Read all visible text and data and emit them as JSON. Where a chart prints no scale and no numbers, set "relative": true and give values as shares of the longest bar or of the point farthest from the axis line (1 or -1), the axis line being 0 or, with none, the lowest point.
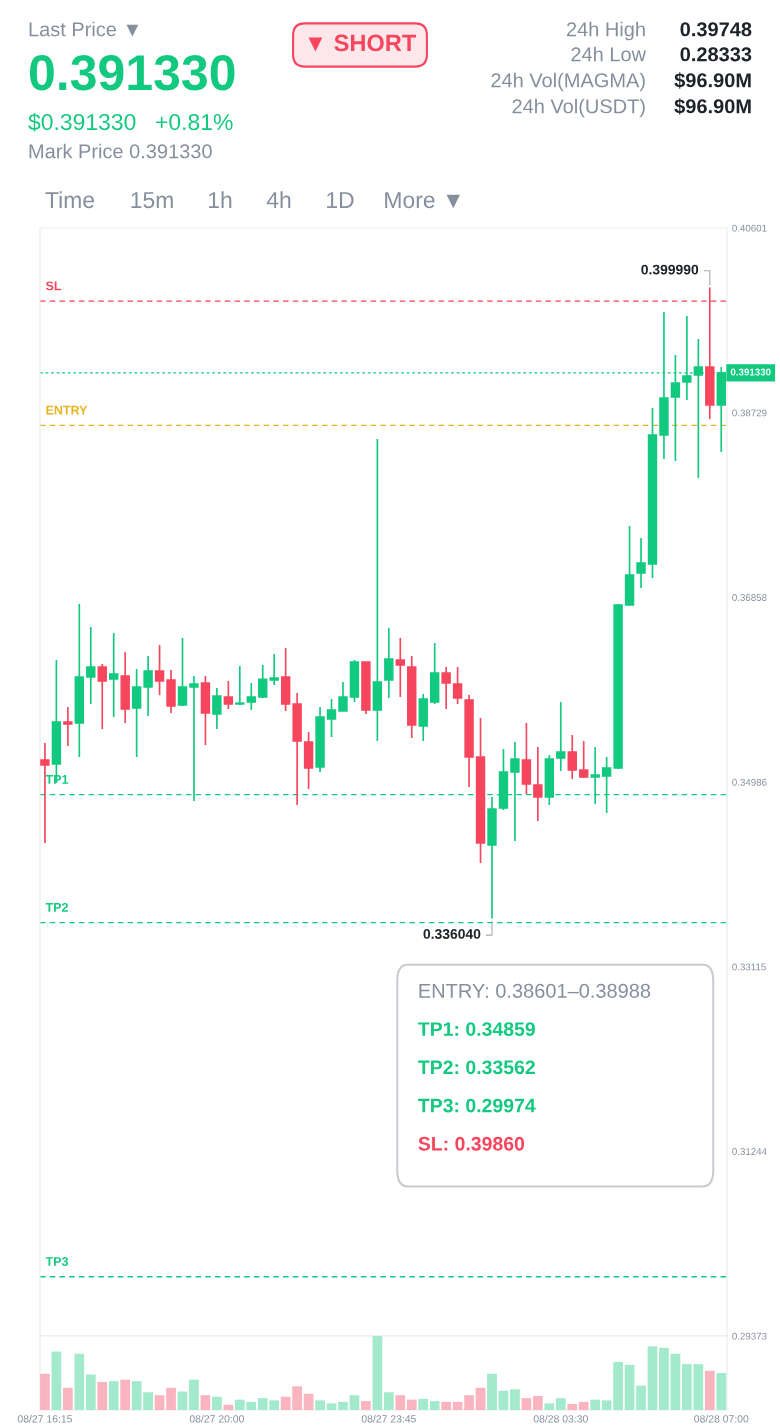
{
  "chart_data": [
    {
      "type": "other",
      "annotations": [
        "Last Price ▼",
        "0.391330",
        "$0.391330",
        "+0.81%",
        "Mark Price 0.391330",
        "▼ SHORT",
        "24h High",
        "0.39748",
        "24h Low",
        "0.28333",
        "24h Vol(MAGMA)",
        "$96.90M",
        "24h Vol(USDT)",
        "$96.90M",
        "Time",
        "15m",
        "1h",
        "4h",
        "1D",
        "More ▼"
      ]
    },
    {
      "type": "candlestick",
      "categories": [
        null,
        null,
        null,
        null,
        null,
        null,
        null,
        null,
        null,
        null,
        null,
        null,
        null,
        null,
        null,
        null,
        null,
        null,
        null,
        null,
        null,
        null,
        null,
        null,
        null,
        null,
        null,
        null,
        null,
        null,
        null,
        null,
        null,
        null,
        null,
        null,
        null,
        null,
        null,
        null,
        null,
        null,
        null,
        null,
        null,
        null,
        null,
        null,
        null,
        null,
        null,
        null,
        null,
        null,
        null,
        null,
        null,
        null,
        null,
        null
      ],
      "ohlc": [
        [
          0.3521,
          0.35382,
          0.34369,
          0.35159
        ],
        [
          0.35169,
          0.36223,
          0.34977,
          0.35595
        ],
        [
          0.35595,
          0.35747,
          0.35352,
          0.35575
        ],
        [
          0.35585,
          0.36791,
          0.3524,
          0.36051
        ],
        [
          0.36051,
          0.36558,
          0.35777,
          0.36152
        ],
        [
          0.36152,
          0.36183,
          0.35524,
          0.3601
        ],
        [
          0.3603,
          0.36497,
          0.35645,
          0.36081
        ],
        [
          0.36061,
          0.36304,
          0.35585,
          0.35727
        ],
        [
          0.35737,
          0.36132,
          0.3524,
          0.35949
        ],
        [
          0.35949,
          0.36264,
          0.35656,
          0.36112
        ],
        [
          0.36112,
          0.36375,
          0.35868,
          0.3601
        ],
        [
          0.3602,
          0.36122,
          0.35686,
          0.35757
        ],
        [
          0.35767,
          0.36446,
          0.35757,
          0.35949
        ],
        [
          0.35949,
          0.36061,
          0.34794,
          0.3598
        ],
        [
          0.3599,
          0.36061,
          0.35362,
          0.35686
        ],
        [
          0.35676,
          0.35939,
          0.35524,
          0.35858
        ],
        [
          0.35848,
          0.3601,
          0.35727,
          0.35777
        ],
        [
          0.35777,
          0.36162,
          0.35767,
          0.35787
        ],
        [
          0.35797,
          0.3599,
          0.35716,
          0.35848
        ],
        [
          0.35848,
          0.36172,
          0.35838,
          0.3603
        ],
        [
          0.3602,
          0.36284,
          0.3597,
          0.36041
        ],
        [
          0.36051,
          0.36345,
          0.35706,
          0.35777
        ],
        [
          0.35777,
          0.35889,
          0.34754,
          0.35402
        ],
        [
          0.35392,
          0.35493,
          0.34916,
          0.35129
        ],
        [
          0.35139,
          0.35747,
          0.35088,
          0.35645
        ],
        [
          0.35625,
          0.35828,
          0.35443,
          0.35716
        ],
        [
          0.35706,
          0.36,
          0.35706,
          0.35848
        ],
        [
          0.35848,
          0.36223,
          0.35797,
          0.36203
        ],
        [
          0.36203,
          0.36203,
          0.35676,
          0.35716
        ],
        [
          0.35716,
          0.38463,
          0.35402,
          0.36
        ],
        [
          0.3602,
          0.36547,
          0.35838,
          0.36233
        ],
        [
          0.36223,
          0.36446,
          0.35848,
          0.36172
        ],
        [
          0.36152,
          0.36264,
          0.35433,
          0.35564
        ],
        [
          0.35554,
          0.35879,
          0.35402,
          0.35828
        ],
        [
          0.35797,
          0.36395,
          0.35777,
          0.36091
        ],
        [
          0.36091,
          0.36152,
          0.35727,
          0.3599
        ],
        [
          0.3598,
          0.36152,
          0.35777,
          0.35838
        ],
        [
          0.35818,
          0.35868,
          0.34936,
          0.3524
        ],
        [
          0.3524,
          0.35635,
          0.34166,
          0.34369
        ],
        [
          0.34348,
          0.34835,
          0.33604,
          0.34713
        ],
        [
          0.34723,
          0.35321,
          0.34703,
          0.35088
        ],
        [
          0.35088,
          0.35392,
          0.34389,
          0.3522
        ],
        [
          0.3521,
          0.35585,
          0.34865,
          0.34967
        ],
        [
          0.34956,
          0.35341,
          0.34592,
          0.34835
        ],
        [
          0.34835,
          0.3526,
          0.34754,
          0.3522
        ],
        [
          0.3523,
          0.35797,
          0.35098,
          0.35291
        ],
        [
          0.35291,
          0.35463,
          0.35017,
          0.35108
        ],
        [
          0.35108,
          0.35402,
          0.35027,
          0.35037
        ],
        [
          0.35037,
          0.35341,
          0.34764,
          0.35058
        ],
        [
          0.35048,
          0.3524,
          0.34673,
          0.35129
        ],
        [
          0.35129,
          0.36791,
          0.35119,
          0.3678
        ],
        [
          0.3678,
          0.37581,
          0.3678,
          0.37084
        ],
        [
          0.37105,
          0.37459,
          0.36953,
          0.37206
        ],
        [
          0.37196,
          0.38777,
          0.37054,
          0.38503
        ],
        [
          0.38503,
          0.3975,
          0.3826,
          0.38878
        ],
        [
          0.38888,
          0.39314,
          0.3824,
          0.3903
        ],
        [
          0.3904,
          0.39709,
          0.38858,
          0.39101
        ],
        [
          0.39111,
          0.39476,
          0.38067,
          0.39192
        ],
        [
          0.39192,
          0.39999,
          0.38665,
          0.38807
        ],
        [
          0.38807,
          0.39192,
          0.38331,
          0.39133
        ]
      ],
      "colors": [
        "#f6465d",
        "#12c97f",
        "#f6465d",
        "#12c97f",
        "#12c97f",
        "#f6465d",
        "#12c97f",
        "#f6465d",
        "#12c97f",
        "#12c97f",
        "#f6465d",
        "#f6465d",
        "#12c97f",
        "#12c97f",
        "#f6465d",
        "#12c97f",
        "#f6465d",
        "#12c97f",
        "#12c97f",
        "#12c97f",
        "#12c97f",
        "#f6465d",
        "#f6465d",
        "#f6465d",
        "#12c97f",
        "#12c97f",
        "#12c97f",
        "#12c97f",
        "#f6465d",
        "#12c97f",
        "#12c97f",
        "#f6465d",
        "#f6465d",
        "#12c97f",
        "#12c97f",
        "#f6465d",
        "#f6465d",
        "#f6465d",
        "#f6465d",
        "#12c97f",
        "#12c97f",
        "#12c97f",
        "#f6465d",
        "#f6465d",
        "#12c97f",
        "#12c97f",
        "#f6465d",
        "#f6465d",
        "#12c97f",
        "#12c97f",
        "#12c97f",
        "#12c97f",
        "#12c97f",
        "#12c97f",
        "#12c97f",
        "#12c97f",
        "#12c97f",
        "#12c97f",
        "#f6465d",
        "#12c97f"
      ],
      "ylim": [
        0.29373,
        0.40601
      ],
      "yticks": [
        0.29373,
        0.31244,
        0.33115,
        0.34986,
        0.36858,
        0.38729,
        0.40601
      ],
      "tick_labels": "y",
      "ref_lines": [
        {
          "axis": "y",
          "value": 0.3986,
          "label": "SL",
          "color": "#f6465d",
          "line_style": "dashed"
        },
        {
          "axis": "y",
          "value": 0.38601,
          "label": "ENTRY",
          "color": "#e6b422",
          "line_style": "dashed"
        },
        {
          "axis": "y",
          "value": 0.34859,
          "label": "TP1",
          "color": "#12c97f",
          "line_style": "dashed"
        },
        {
          "axis": "y",
          "value": 0.33562,
          "label": "TP2",
          "color": "#12c97f",
          "line_style": "dashed"
        },
        {
          "axis": "y",
          "value": 0.29974,
          "label": "TP3",
          "color": "#12c97f",
          "line_style": "dashed"
        },
        {
          "axis": "y",
          "value": 0.39133,
          "label": "0.391330",
          "color": "#12c97f",
          "line_style": "dotted"
        }
      ],
      "annotations": [
        "0.399990",
        "0.336040",
        "ENTRY: 0.38601–0.38988",
        "TP1: 0.34859",
        "TP2: 0.33562",
        "TP3: 0.29974",
        "SL: 0.39860"
      ]
    },
    {
      "type": "bar",
      "relative": true,
      "categories": [
        "08/27 16:15",
        null,
        null,
        null,
        null,
        null,
        null,
        null,
        null,
        null,
        null,
        null,
        null,
        null,
        null,
        "08/27 20:00",
        null,
        null,
        null,
        null,
        null,
        null,
        null,
        null,
        null,
        null,
        null,
        null,
        null,
        null,
        "08/27 23:45",
        null,
        null,
        null,
        null,
        null,
        null,
        null,
        null,
        null,
        null,
        null,
        null,
        null,
        null,
        "08/28 03:30",
        null,
        null,
        null,
        null,
        null,
        null,
        null,
        null,
        null,
        null,
        null,
        null,
        null,
        "08/28 07:00"
      ],
      "values": [
        0.49,
        0.79,
        0.3,
        0.76,
        0.48,
        0.38,
        0.39,
        0.41,
        0.39,
        0.24,
        0.2,
        0.3,
        0.25,
        0.41,
        0.2,
        0.18,
        0.07,
        0.14,
        0.11,
        0.16,
        0.13,
        0.18,
        0.32,
        0.22,
        0.13,
        0.09,
        0.11,
        0.2,
        0.12,
        1,
        0.24,
        0.2,
        0.14,
        0.15,
        0.12,
        0.11,
        0.11,
        0.2,
        0.3,
        0.49,
        0.26,
        0.28,
        0.16,
        0.19,
        0.09,
        0.16,
        0.08,
        0.11,
        0.14,
        0.13,
        0.65,
        0.61,
        0.33,
        0.86,
        0.84,
        0.76,
        0.62,
        0.62,
        0.53,
        0.5
      ],
      "colors": [
        "#f9b4bf",
        "#a3e9cc",
        "#f9b4bf",
        "#a3e9cc",
        "#a3e9cc",
        "#f9b4bf",
        "#a3e9cc",
        "#f9b4bf",
        "#a3e9cc",
        "#a3e9cc",
        "#f9b4bf",
        "#f9b4bf",
        "#a3e9cc",
        "#a3e9cc",
        "#f9b4bf",
        "#a3e9cc",
        "#f9b4bf",
        "#a3e9cc",
        "#a3e9cc",
        "#a3e9cc",
        "#a3e9cc",
        "#f9b4bf",
        "#f9b4bf",
        "#f9b4bf",
        "#a3e9cc",
        "#a3e9cc",
        "#a3e9cc",
        "#a3e9cc",
        "#f9b4bf",
        "#a3e9cc",
        "#a3e9cc",
        "#f9b4bf",
        "#f9b4bf",
        "#a3e9cc",
        "#a3e9cc",
        "#f9b4bf",
        "#f9b4bf",
        "#f9b4bf",
        "#f9b4bf",
        "#a3e9cc",
        "#a3e9cc",
        "#a3e9cc",
        "#f9b4bf",
        "#f9b4bf",
        "#a3e9cc",
        "#a3e9cc",
        "#f9b4bf",
        "#f9b4bf",
        "#a3e9cc",
        "#a3e9cc",
        "#a3e9cc",
        "#a3e9cc",
        "#a3e9cc",
        "#a3e9cc",
        "#a3e9cc",
        "#a3e9cc",
        "#a3e9cc",
        "#a3e9cc",
        "#f9b4bf",
        "#a3e9cc"
      ],
      "tick_labels": "x"
    }
  ]
}
